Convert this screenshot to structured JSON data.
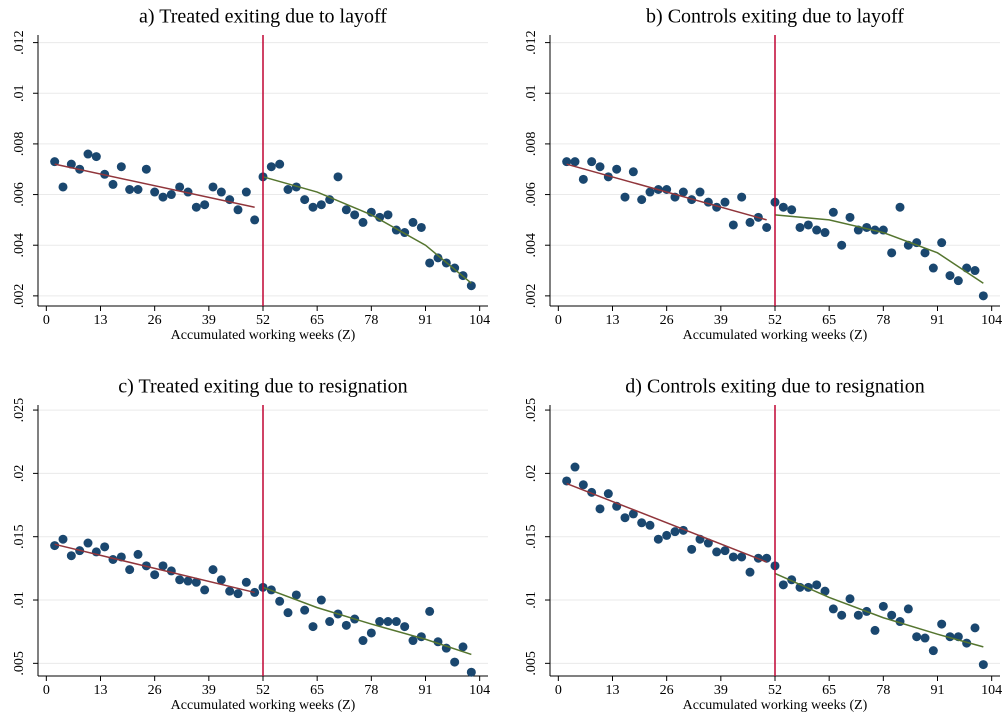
{
  "chart_data": [
    {
      "type": "scatter",
      "title": "a) Treated exiting due to layoff",
      "xlabel": "Accumulated working weeks (Z)",
      "xlim": [
        -2,
        106
      ],
      "xticks": [
        0,
        13,
        26,
        39,
        52,
        65,
        78,
        91,
        104
      ],
      "ylim": [
        0.0016,
        0.0123
      ],
      "yticks": [
        {
          "value": 0.002,
          "label": ".002"
        },
        {
          "value": 0.004,
          "label": ".004"
        },
        {
          "value": 0.006,
          "label": ".006"
        },
        {
          "value": 0.008,
          "label": ".008"
        },
        {
          "value": 0.01,
          "label": ".01"
        },
        {
          "value": 0.012,
          "label": ".012"
        }
      ],
      "grid": true,
      "cutoff": 52,
      "cutoff_color": "#c10534",
      "color": "#1a476f",
      "x": [
        2,
        4,
        6,
        8,
        10,
        12,
        14,
        16,
        18,
        20,
        22,
        24,
        26,
        28,
        30,
        32,
        34,
        36,
        38,
        40,
        42,
        44,
        46,
        48,
        50,
        52,
        54,
        56,
        58,
        60,
        62,
        64,
        66,
        68,
        70,
        72,
        74,
        76,
        78,
        80,
        82,
        84,
        86,
        88,
        90,
        92,
        94,
        96,
        98,
        100,
        102
      ],
      "values": [
        0.0073,
        0.0063,
        0.0072,
        0.007,
        0.0076,
        0.0075,
        0.0068,
        0.0064,
        0.0071,
        0.0062,
        0.0062,
        0.007,
        0.0061,
        0.0059,
        0.006,
        0.0063,
        0.0061,
        0.0055,
        0.0056,
        0.0063,
        0.0061,
        0.0058,
        0.0054,
        0.0061,
        0.005,
        0.0067,
        0.0071,
        0.0072,
        0.0062,
        0.0063,
        0.0058,
        0.0055,
        0.0056,
        0.0058,
        0.0067,
        0.0054,
        0.0052,
        0.0049,
        0.0053,
        0.0051,
        0.0052,
        0.0046,
        0.0045,
        0.0049,
        0.0047,
        0.0033,
        0.0035,
        0.0033,
        0.0031,
        0.0028,
        0.0024
      ],
      "fits": [
        {
          "color": "#90353b",
          "x": [
            2,
            50
          ],
          "values": [
            0.0072,
            0.0055
          ]
        },
        {
          "color": "#55752f",
          "x": [
            52,
            65,
            78,
            91,
            102
          ],
          "values": [
            0.0067,
            0.0061,
            0.0052,
            0.004,
            0.0025
          ]
        }
      ]
    },
    {
      "type": "scatter",
      "title": "b) Controls exiting due to layoff",
      "xlabel": "Accumulated working weeks (Z)",
      "xlim": [
        -2,
        106
      ],
      "xticks": [
        0,
        13,
        26,
        39,
        52,
        65,
        78,
        91,
        104
      ],
      "ylim": [
        0.0016,
        0.0123
      ],
      "yticks": [
        {
          "value": 0.002,
          "label": ".002"
        },
        {
          "value": 0.004,
          "label": ".004"
        },
        {
          "value": 0.006,
          "label": ".006"
        },
        {
          "value": 0.008,
          "label": ".008"
        },
        {
          "value": 0.01,
          "label": ".01"
        },
        {
          "value": 0.012,
          "label": ".012"
        }
      ],
      "grid": true,
      "cutoff": 52,
      "cutoff_color": "#c10534",
      "color": "#1a476f",
      "x": [
        2,
        4,
        6,
        8,
        10,
        12,
        14,
        16,
        18,
        20,
        22,
        24,
        26,
        28,
        30,
        32,
        34,
        36,
        38,
        40,
        42,
        44,
        46,
        48,
        50,
        52,
        54,
        56,
        58,
        60,
        62,
        64,
        66,
        68,
        70,
        72,
        74,
        76,
        78,
        80,
        82,
        84,
        86,
        88,
        90,
        92,
        94,
        96,
        98,
        100,
        102
      ],
      "values": [
        0.0073,
        0.0073,
        0.0066,
        0.0073,
        0.0071,
        0.0067,
        0.007,
        0.0059,
        0.0069,
        0.0058,
        0.0061,
        0.0062,
        0.0062,
        0.0059,
        0.0061,
        0.0058,
        0.0061,
        0.0057,
        0.0055,
        0.0057,
        0.0048,
        0.0059,
        0.0049,
        0.0051,
        0.0047,
        0.0057,
        0.0055,
        0.0054,
        0.0047,
        0.0048,
        0.0046,
        0.0045,
        0.0053,
        0.004,
        0.0051,
        0.0046,
        0.0047,
        0.0046,
        0.0046,
        0.0037,
        0.0055,
        0.004,
        0.0041,
        0.0037,
        0.0031,
        0.0041,
        0.0028,
        0.0026,
        0.0031,
        0.003,
        0.002
      ],
      "fits": [
        {
          "color": "#90353b",
          "x": [
            2,
            50
          ],
          "values": [
            0.0072,
            0.005
          ]
        },
        {
          "color": "#55752f",
          "x": [
            52,
            65,
            78,
            91,
            102
          ],
          "values": [
            0.0052,
            0.005,
            0.0045,
            0.0037,
            0.0025
          ]
        }
      ]
    },
    {
      "type": "scatter",
      "title": "c) Treated exiting due to resignation",
      "xlabel": "Accumulated working weeks (Z)",
      "xlim": [
        -2,
        106
      ],
      "xticks": [
        0,
        13,
        26,
        39,
        52,
        65,
        78,
        91,
        104
      ],
      "ylim": [
        0.004,
        0.0254
      ],
      "yticks": [
        {
          "value": 0.005,
          "label": ".005"
        },
        {
          "value": 0.01,
          "label": ".01"
        },
        {
          "value": 0.015,
          "label": ".015"
        },
        {
          "value": 0.02,
          "label": ".02"
        },
        {
          "value": 0.025,
          "label": ".025"
        }
      ],
      "grid": true,
      "cutoff": 52,
      "cutoff_color": "#c10534",
      "color": "#1a476f",
      "x": [
        2,
        4,
        6,
        8,
        10,
        12,
        14,
        16,
        18,
        20,
        22,
        24,
        26,
        28,
        30,
        32,
        34,
        36,
        38,
        40,
        42,
        44,
        46,
        48,
        50,
        52,
        54,
        56,
        58,
        60,
        62,
        64,
        66,
        68,
        70,
        72,
        74,
        76,
        78,
        80,
        82,
        84,
        86,
        88,
        90,
        92,
        94,
        96,
        98,
        100,
        102
      ],
      "values": [
        0.0143,
        0.0148,
        0.0135,
        0.0139,
        0.0145,
        0.0138,
        0.0142,
        0.0132,
        0.0134,
        0.0124,
        0.0136,
        0.0127,
        0.012,
        0.0127,
        0.0123,
        0.0116,
        0.0115,
        0.0114,
        0.0108,
        0.0124,
        0.0116,
        0.0107,
        0.0105,
        0.0114,
        0.0106,
        0.011,
        0.0108,
        0.0099,
        0.009,
        0.0104,
        0.0092,
        0.0079,
        0.01,
        0.0083,
        0.0089,
        0.008,
        0.0085,
        0.0068,
        0.0074,
        0.0083,
        0.0083,
        0.0083,
        0.0079,
        0.0068,
        0.0071,
        0.0091,
        0.0067,
        0.0062,
        0.0051,
        0.0063,
        0.0043
      ],
      "fits": [
        {
          "color": "#90353b",
          "x": [
            2,
            50
          ],
          "values": [
            0.0144,
            0.0106
          ]
        },
        {
          "color": "#55752f",
          "x": [
            52,
            65,
            78,
            91,
            102
          ],
          "values": [
            0.011,
            0.0094,
            0.0081,
            0.0069,
            0.0057
          ]
        }
      ]
    },
    {
      "type": "scatter",
      "title": "d) Controls exiting due to resignation",
      "xlabel": "Accumulated working weeks (Z)",
      "xlim": [
        -2,
        106
      ],
      "xticks": [
        0,
        13,
        26,
        39,
        52,
        65,
        78,
        91,
        104
      ],
      "ylim": [
        0.004,
        0.0254
      ],
      "yticks": [
        {
          "value": 0.005,
          "label": ".005"
        },
        {
          "value": 0.01,
          "label": ".01"
        },
        {
          "value": 0.015,
          "label": ".015"
        },
        {
          "value": 0.02,
          "label": ".02"
        },
        {
          "value": 0.025,
          "label": ".025"
        }
      ],
      "grid": true,
      "cutoff": 52,
      "cutoff_color": "#c10534",
      "color": "#1a476f",
      "x": [
        2,
        4,
        6,
        8,
        10,
        12,
        14,
        16,
        18,
        20,
        22,
        24,
        26,
        28,
        30,
        32,
        34,
        36,
        38,
        40,
        42,
        44,
        46,
        48,
        50,
        52,
        54,
        56,
        58,
        60,
        62,
        64,
        66,
        68,
        70,
        72,
        74,
        76,
        78,
        80,
        82,
        84,
        86,
        88,
        90,
        92,
        94,
        96,
        98,
        100,
        102
      ],
      "values": [
        0.0194,
        0.0205,
        0.0191,
        0.0185,
        0.0172,
        0.0184,
        0.0174,
        0.0165,
        0.0168,
        0.0161,
        0.0159,
        0.0148,
        0.0151,
        0.0154,
        0.0155,
        0.014,
        0.0148,
        0.0145,
        0.0138,
        0.0139,
        0.0134,
        0.0134,
        0.0122,
        0.0133,
        0.0133,
        0.0127,
        0.0112,
        0.0116,
        0.011,
        0.011,
        0.0112,
        0.0107,
        0.0093,
        0.0088,
        0.0101,
        0.0088,
        0.0091,
        0.0076,
        0.0095,
        0.0088,
        0.0083,
        0.0093,
        0.0071,
        0.007,
        0.006,
        0.0081,
        0.0071,
        0.0071,
        0.0066,
        0.0078,
        0.0049
      ],
      "fits": [
        {
          "color": "#90353b",
          "x": [
            2,
            50
          ],
          "values": [
            0.0192,
            0.013
          ]
        },
        {
          "color": "#55752f",
          "x": [
            52,
            65,
            78,
            91,
            102
          ],
          "values": [
            0.0121,
            0.0102,
            0.0086,
            0.0073,
            0.0063
          ]
        }
      ]
    }
  ]
}
